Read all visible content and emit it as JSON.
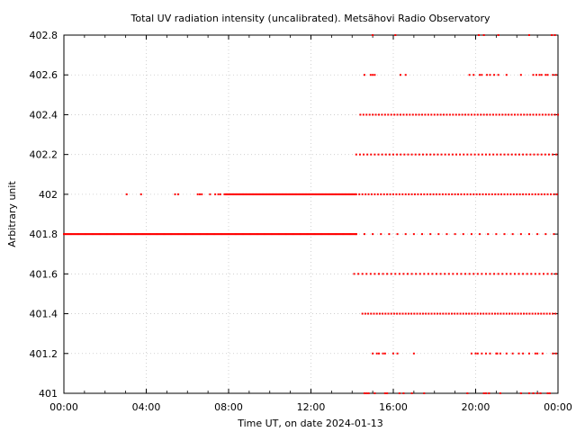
{
  "chart_data": {
    "type": "scatter",
    "title": "Total UV radiation intensity (uncalibrated). Metsähovi Radio Observatory",
    "xlabel": "Time UT, on date 2024-01-13",
    "ylabel": "Arbitrary unit",
    "x_unit": "hours UT",
    "xlim": [
      0,
      24
    ],
    "ylim": [
      401.0,
      402.8
    ],
    "x_ticks": [
      0,
      4,
      8,
      12,
      16,
      20,
      24
    ],
    "x_tick_labels": [
      "00:00",
      "04:00",
      "08:00",
      "12:00",
      "16:00",
      "20:00",
      "00:00"
    ],
    "y_ticks": [
      401,
      401.2,
      401.4,
      401.6,
      401.8,
      402,
      402.2,
      402.4,
      402.6,
      402.8
    ],
    "y_tick_labels": [
      "401",
      "401.2",
      "401.4",
      "401.6",
      "401.8",
      "402",
      "402.2",
      "402.4",
      "402.6",
      "402.8"
    ],
    "grid": true,
    "marker_color": "#ff0000",
    "series": [
      {
        "values_by_level": [
          {
            "y": 401.8,
            "ranges": [
              [
                0.0,
                14.2,
                0.05
              ],
              [
                14.2,
                24.0,
                0.4
              ]
            ],
            "points": []
          },
          {
            "y": 402.0,
            "ranges": [
              [
                7.8,
                14.2,
                0.06
              ],
              [
                14.2,
                24.0,
                0.15
              ]
            ],
            "points": [
              3.05,
              3.75,
              5.4,
              5.55,
              6.5,
              6.6,
              6.7,
              7.1,
              7.35,
              7.5,
              7.6
            ]
          },
          {
            "y": 402.2,
            "ranges": [
              [
                14.2,
                24.0,
                0.18
              ]
            ],
            "points": []
          },
          {
            "y": 402.4,
            "ranges": [
              [
                14.4,
                24.0,
                0.15
              ]
            ],
            "points": []
          },
          {
            "y": 402.6,
            "ranges": [],
            "points": [
              14.6,
              14.9,
              15.0,
              15.1,
              16.35,
              16.6,
              19.7,
              19.9,
              20.2,
              20.3,
              20.55,
              20.7,
              20.9,
              21.1,
              21.5,
              22.2,
              22.8,
              22.95,
              23.1,
              23.2,
              23.4,
              23.5,
              23.75,
              23.9
            ]
          },
          {
            "y": 402.8,
            "ranges": [],
            "points": [
              15.0,
              16.1,
              20.15,
              20.4,
              21.1,
              22.6,
              23.7,
              23.85
            ]
          },
          {
            "y": 401.6,
            "ranges": [
              [
                14.1,
                24.0,
                0.2
              ]
            ],
            "points": []
          },
          {
            "y": 401.4,
            "ranges": [
              [
                14.5,
                24.0,
                0.14
              ]
            ],
            "points": []
          },
          {
            "y": 401.2,
            "ranges": [],
            "points": [
              15.0,
              15.2,
              15.3,
              15.5,
              15.6,
              16.0,
              16.2,
              17.0,
              19.8,
              20.0,
              20.1,
              20.3,
              20.5,
              20.7,
              21.0,
              21.05,
              21.2,
              21.5,
              21.8,
              22.1,
              22.3,
              22.6,
              22.9,
              23.0,
              23.25,
              23.75,
              23.9
            ]
          },
          {
            "y": 401.0,
            "ranges": [],
            "points": [
              14.6,
              14.7,
              14.8,
              15.1,
              15.6,
              15.7,
              16.3,
              16.5,
              16.9,
              17.5,
              19.6,
              20.4,
              20.5,
              20.65,
              21.2,
              22.2,
              22.6,
              22.8,
              23.0,
              23.15,
              23.5,
              23.6
            ]
          }
        ]
      }
    ]
  }
}
